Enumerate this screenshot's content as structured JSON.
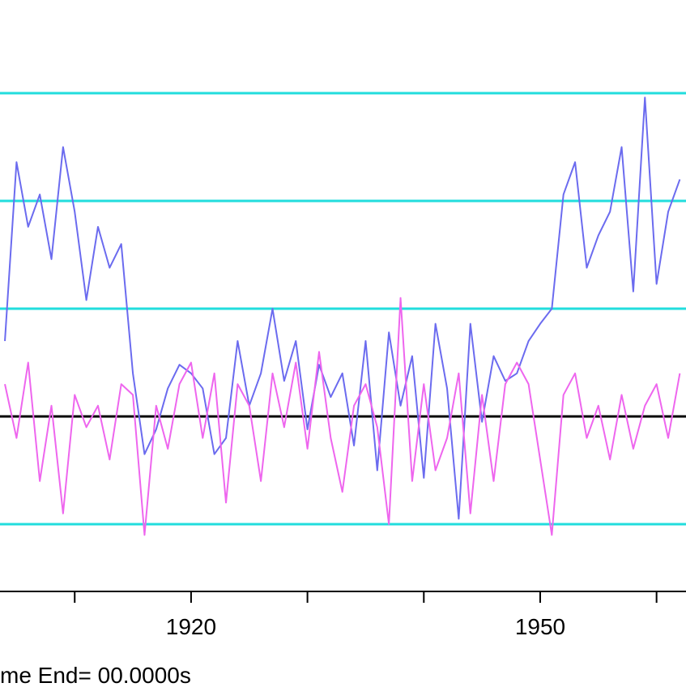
{
  "chart_data": {
    "type": "line",
    "x": [
      1904,
      1905,
      1906,
      1907,
      1908,
      1909,
      1910,
      1911,
      1912,
      1913,
      1914,
      1915,
      1916,
      1917,
      1918,
      1919,
      1920,
      1921,
      1922,
      1923,
      1924,
      1925,
      1926,
      1927,
      1928,
      1929,
      1930,
      1931,
      1932,
      1933,
      1934,
      1935,
      1936,
      1937,
      1938,
      1939,
      1940,
      1941,
      1942,
      1943,
      1944,
      1945,
      1946,
      1947,
      1948,
      1949,
      1950,
      1951,
      1952,
      1953,
      1954,
      1955,
      1956,
      1957,
      1958,
      1959,
      1960,
      1961,
      1962
    ],
    "series": [
      {
        "color": "#6b6bef",
        "values": [
          0.7,
          2.36,
          1.76,
          2.06,
          1.46,
          2.5,
          1.9,
          1.08,
          1.76,
          1.38,
          1.6,
          0.4,
          -0.35,
          -0.12,
          0.26,
          0.48,
          0.4,
          0.26,
          -0.35,
          -0.2,
          0.7,
          0.1,
          0.4,
          1.0,
          0.33,
          0.7,
          -0.12,
          0.48,
          0.18,
          0.4,
          -0.27,
          0.7,
          -0.5,
          0.78,
          0.1,
          0.56,
          -0.57,
          0.86,
          0.26,
          -0.95,
          0.86,
          -0.05,
          0.56,
          0.33,
          0.4,
          0.7,
          0.86,
          1.0,
          2.06,
          2.36,
          1.38,
          1.68,
          1.9,
          2.5,
          1.16,
          2.96,
          1.23,
          1.9,
          2.2
        ]
      },
      {
        "color": "#ee66ee",
        "values": [
          0.3,
          -0.2,
          0.5,
          -0.6,
          0.1,
          -0.9,
          0.2,
          -0.1,
          0.1,
          -0.4,
          0.3,
          0.2,
          -1.1,
          0.1,
          -0.3,
          0.3,
          0.5,
          -0.2,
          0.4,
          -0.8,
          0.3,
          0.1,
          -0.6,
          0.4,
          -0.1,
          0.5,
          -0.3,
          0.6,
          -0.2,
          -0.7,
          0.1,
          0.3,
          -0.1,
          -1.0,
          1.1,
          -0.6,
          0.3,
          -0.5,
          -0.2,
          0.4,
          -0.9,
          0.2,
          -0.6,
          0.3,
          0.5,
          0.3,
          -0.4,
          -1.1,
          0.2,
          0.4,
          -0.2,
          0.1,
          -0.4,
          0.2,
          -0.3,
          0.1,
          0.3,
          -0.2,
          0.4
        ]
      }
    ],
    "xlim": [
      1903.58,
      1962.53
    ],
    "xticks": [
      1920,
      1950
    ],
    "xminorticks": [
      1910,
      1930,
      1940,
      1960
    ],
    "ylim": [
      -1.624,
      3.865
    ],
    "yticks": [
      -1,
      0,
      1,
      2,
      3
    ],
    "grid": true,
    "grid_color": "#22dddd",
    "zero_line_color": "#000000",
    "footer": "me End= 00.0000s"
  }
}
